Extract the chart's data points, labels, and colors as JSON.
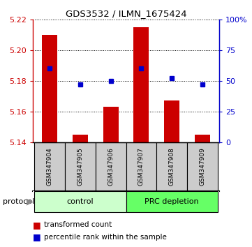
{
  "title": "GDS3532 / ILMN_1675424",
  "samples": [
    "GSM347904",
    "GSM347905",
    "GSM347906",
    "GSM347907",
    "GSM347908",
    "GSM347909"
  ],
  "transformed_counts": [
    5.21,
    5.145,
    5.163,
    5.215,
    5.167,
    5.145
  ],
  "percentile_ranks": [
    60,
    47,
    50,
    60,
    52,
    47
  ],
  "bar_bottom": 5.14,
  "ylim": [
    5.14,
    5.22
  ],
  "yticks": [
    5.14,
    5.16,
    5.18,
    5.2,
    5.22
  ],
  "right_ylim": [
    0,
    100
  ],
  "right_yticks": [
    0,
    25,
    50,
    75,
    100
  ],
  "right_yticklabels": [
    "0",
    "25",
    "50",
    "75",
    "100%"
  ],
  "bar_color": "#cc0000",
  "dot_color": "#0000cc",
  "control_label": "control",
  "prc_label": "PRC depletion",
  "protocol_label": "protocol",
  "control_bg": "#ccffcc",
  "prc_bg": "#66ff66",
  "sample_bg": "#cccccc",
  "legend_bar_label": "transformed count",
  "legend_dot_label": "percentile rank within the sample"
}
